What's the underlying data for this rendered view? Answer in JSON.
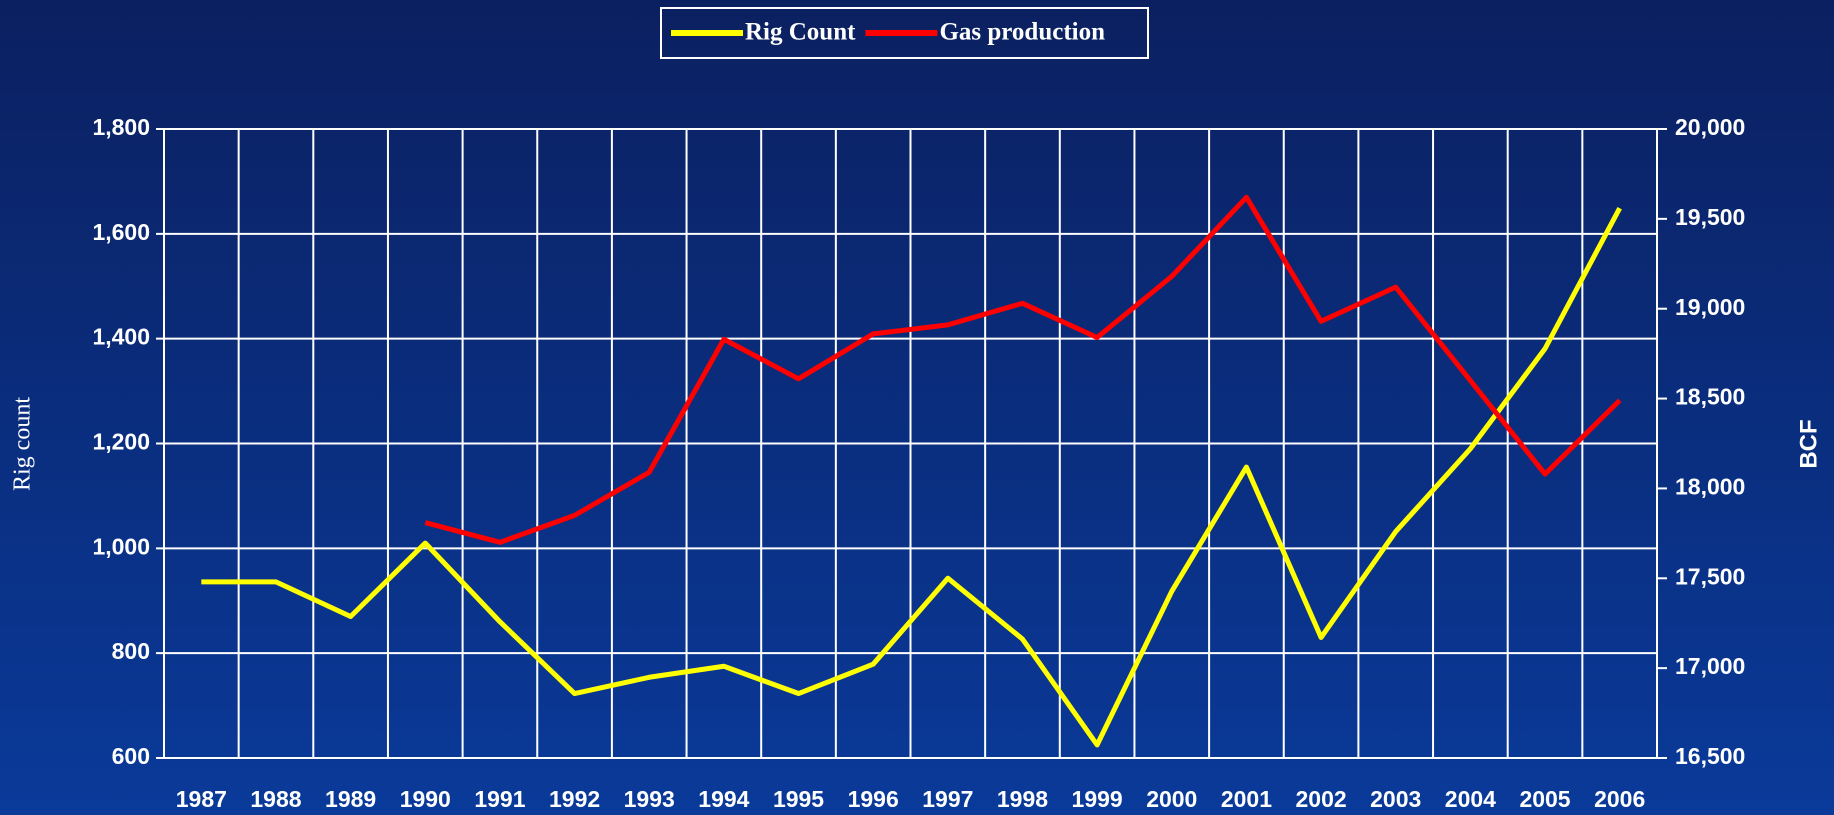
{
  "chart_data": {
    "type": "line",
    "categories": [
      "1987",
      "1988",
      "1989",
      "1990",
      "1991",
      "1992",
      "1993",
      "1994",
      "1995",
      "1996",
      "1997",
      "1998",
      "1999",
      "2000",
      "2001",
      "2002",
      "2003",
      "2004",
      "2005",
      "2006"
    ],
    "series": [
      {
        "name": "Rig Count",
        "color": "#ffff00",
        "values": [
          936,
          936,
          870,
          1010,
          860,
          723,
          754,
          775,
          723,
          779,
          943,
          827,
          625,
          918,
          1155,
          830,
          1032,
          1190,
          1381,
          1649
        ]
      },
      {
        "name": "Gas production",
        "color": "#ff0000",
        "axis": "y2",
        "values": [
          null,
          null,
          null,
          17810,
          17700,
          17850,
          18090,
          18830,
          18610,
          18860,
          18910,
          19030,
          18840,
          19180,
          19620,
          18930,
          19120,
          18600,
          18080,
          18490
        ]
      }
    ],
    "y_label": "Rig count",
    "y2_label": "BCF",
    "ylim": [
      600,
      1800
    ],
    "yticks": [
      600,
      800,
      {
        "value": 1000,
        "label": "1,000"
      },
      {
        "value": 1200,
        "label": "1,200"
      },
      {
        "value": 1400,
        "label": "1,400"
      },
      {
        "value": 1600,
        "label": "1,600"
      },
      {
        "value": 1800,
        "label": "1,800"
      }
    ],
    "y2lim": [
      16500,
      20000
    ],
    "y2ticks": [
      {
        "value": 16500,
        "label": "16,500"
      },
      {
        "value": 17000,
        "label": "17,000"
      },
      {
        "value": 17500,
        "label": "17,500"
      },
      {
        "value": 18000,
        "label": "18,000"
      },
      {
        "value": 18500,
        "label": "18,500"
      },
      {
        "value": 19000,
        "label": "19,000"
      },
      {
        "value": 19500,
        "label": "19,500"
      },
      {
        "value": 20000,
        "label": "20,000"
      }
    ],
    "grid": true,
    "legend": "top"
  }
}
